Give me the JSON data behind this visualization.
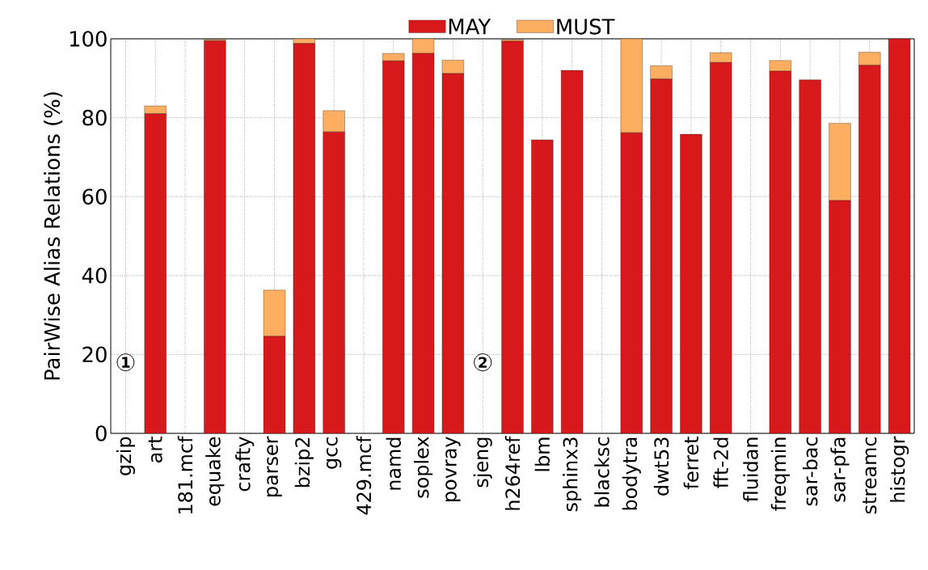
{
  "chart_data": {
    "type": "bar",
    "stacked": true,
    "ylabel": "PairWise Alias Relations (%)",
    "categories": [
      "gzip",
      "art",
      "181.mcf",
      "equake",
      "crafty",
      "parser",
      "bzip2",
      "gcc",
      "429.mcf",
      "namd",
      "soplex",
      "povray",
      "sjeng",
      "h264ref",
      "lbm",
      "sphinx3",
      "blacksc",
      "bodytra",
      "dwt53",
      "ferret",
      "fft-2d",
      "fluidan",
      "freqmin",
      "sar-bac",
      "sar-pfa",
      "streamc",
      "histogr"
    ],
    "series": [
      {
        "name": "MAY",
        "color": "#d7191c",
        "values": [
          0,
          81,
          0,
          99.5,
          0,
          24.6,
          98.8,
          76.4,
          0,
          94.4,
          96.3,
          91.2,
          0,
          99.4,
          74.4,
          92,
          0,
          76.2,
          89.8,
          75.8,
          94,
          0,
          91.8,
          89.6,
          59,
          93.3,
          100
        ]
      },
      {
        "name": "MUST",
        "color": "#fdae61",
        "values": [
          0,
          2,
          0,
          0.3,
          0,
          11.7,
          1.2,
          5.4,
          0,
          1.9,
          3.7,
          3.4,
          0,
          0.4,
          0,
          0,
          0,
          23.8,
          3.4,
          0,
          2.5,
          0,
          2.7,
          0,
          19.6,
          3.3,
          0
        ]
      }
    ],
    "ylim": [
      0,
      100
    ],
    "yticks": [
      0,
      20,
      40,
      60,
      80,
      100
    ],
    "grid": true,
    "legend": "top",
    "annotations": [
      {
        "text": "1",
        "x": "gzip",
        "y": 18
      },
      {
        "text": "2",
        "x": "sjeng",
        "y": 18
      }
    ]
  }
}
